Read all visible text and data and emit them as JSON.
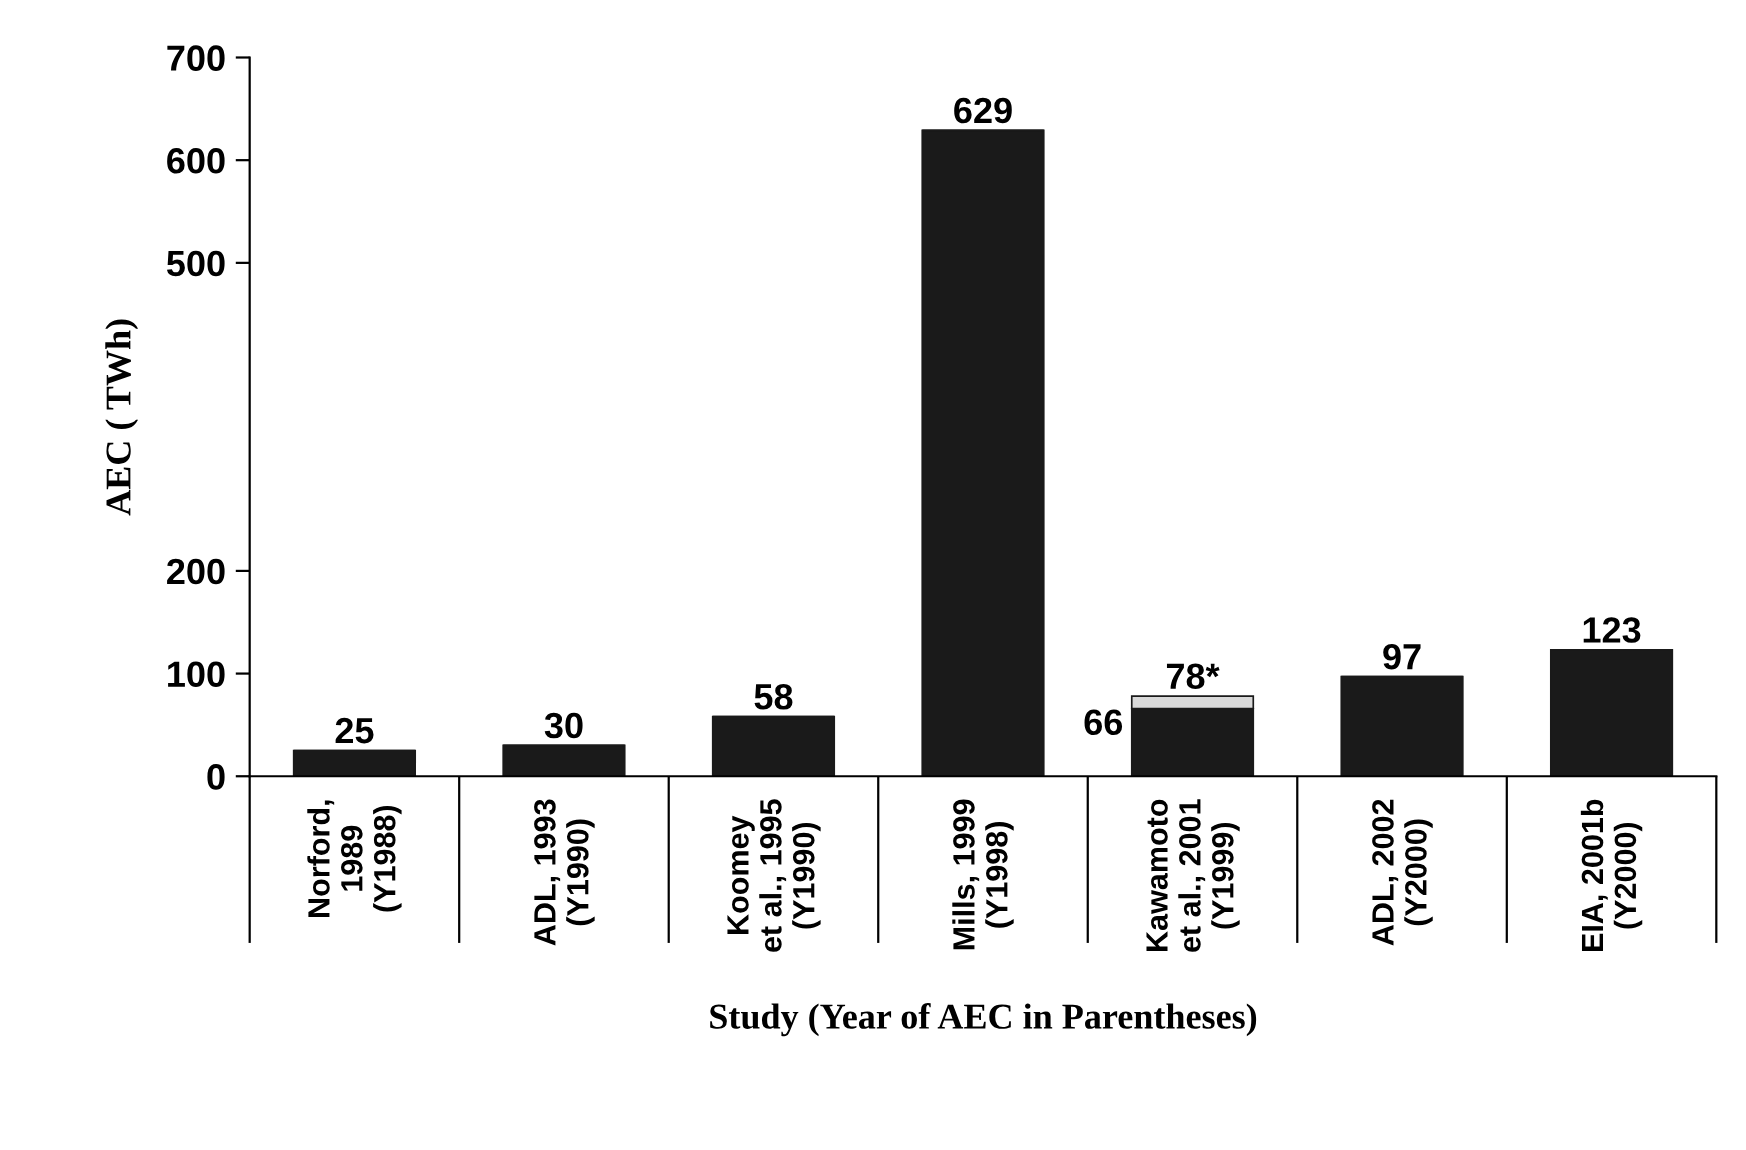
{
  "chart_data": {
    "type": "bar",
    "xlabel": "Study (Year of AEC in Parentheses)",
    "ylabel": "AEC ( TWh)",
    "categories": [
      "Norford,\n1989\n(Y1988)",
      "ADL, 1993\n(Y1990)",
      "Koomey\net al., 1995\n(Y1990)",
      "Mills, 1999\n(Y1998)",
      "Kawamoto\net al., 2001\n(Y1999)",
      "ADL, 2002\n(Y2000)",
      "EIA, 2001b\n(Y2000)"
    ],
    "series": [
      {
        "color": "#1a1a1a",
        "values": [
          25,
          30,
          58,
          629,
          66,
          97,
          123
        ],
        "value_labels": [
          "25",
          "30",
          "58",
          "629",
          "66",
          "97",
          "123"
        ]
      },
      {
        "color": "#d9d9d9",
        "values": [
          null,
          null,
          null,
          null,
          12,
          null,
          null
        ]
      }
    ],
    "totals": [
      null,
      null,
      null,
      null,
      "78*",
      null,
      null
    ],
    "stacked": true,
    "ylim": [
      0,
      700
    ],
    "yticks": [
      0,
      100,
      200,
      500,
      600,
      700
    ],
    "grid": false
  }
}
